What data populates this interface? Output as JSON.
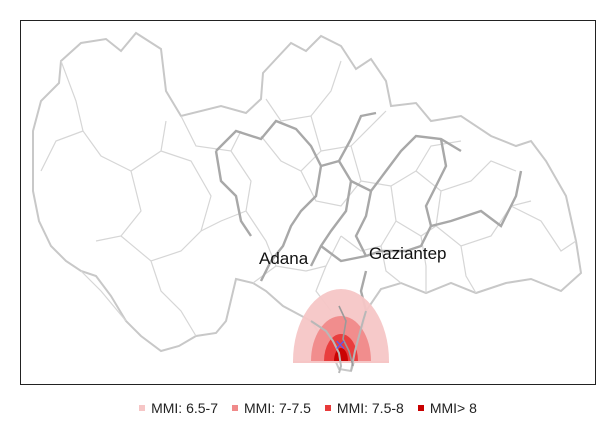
{
  "map": {
    "labels": {
      "city_1": "Adana",
      "city_2": "Gaziantep"
    },
    "epicenter_marker": "×"
  },
  "legend": {
    "items": [
      {
        "label": "MMI: 6.5-7",
        "color": "#f6c6c6"
      },
      {
        "label": "MMI: 7-7.5",
        "color": "#f08a8a"
      },
      {
        "label": "MMI: 7.5-8",
        "color": "#e83a3a"
      },
      {
        "label": "MMI> 8",
        "color": "#c80000"
      }
    ]
  },
  "colors": {
    "province_border": "#a8a8a8",
    "district_border": "#d4d4d4",
    "epicenter": "#5a5af0"
  }
}
